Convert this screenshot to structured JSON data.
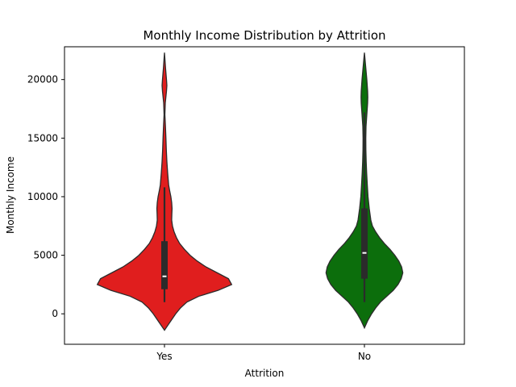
{
  "chart_data": {
    "type": "violin",
    "title": "Monthly Income Distribution by Attrition",
    "xlabel": "Attrition",
    "ylabel": "Monthly Income",
    "categories": [
      "Yes",
      "No"
    ],
    "ylim": [
      -2600,
      22800
    ],
    "yticks": [
      0,
      5000,
      10000,
      15000,
      20000
    ],
    "grid": false,
    "legend": "none",
    "violins": [
      {
        "category": "Yes",
        "color": "#e01e1e",
        "quartiles": {
          "q1": 2100,
          "median": 3200,
          "q3": 6200
        },
        "whiskers": {
          "low": 1000,
          "high": 10800
        },
        "profile": [
          [
            -1400,
            0.0
          ],
          [
            -1000,
            0.04
          ],
          [
            -500,
            0.09
          ],
          [
            0,
            0.14
          ],
          [
            500,
            0.2
          ],
          [
            1000,
            0.28
          ],
          [
            1500,
            0.43
          ],
          [
            2000,
            0.67
          ],
          [
            2500,
            0.84
          ],
          [
            3000,
            0.8
          ],
          [
            3500,
            0.66
          ],
          [
            4000,
            0.52
          ],
          [
            4500,
            0.41
          ],
          [
            5000,
            0.32
          ],
          [
            5500,
            0.25
          ],
          [
            6000,
            0.19
          ],
          [
            6500,
            0.15
          ],
          [
            7000,
            0.12
          ],
          [
            7500,
            0.1
          ],
          [
            8000,
            0.09
          ],
          [
            8500,
            0.092
          ],
          [
            9000,
            0.095
          ],
          [
            9500,
            0.09
          ],
          [
            10000,
            0.08
          ],
          [
            10500,
            0.065
          ],
          [
            11000,
            0.052
          ],
          [
            12000,
            0.04
          ],
          [
            13000,
            0.03
          ],
          [
            14000,
            0.023
          ],
          [
            15000,
            0.018
          ],
          [
            16000,
            0.012
          ],
          [
            17000,
            0.005
          ],
          [
            18000,
            0.01
          ],
          [
            19000,
            0.025
          ],
          [
            19500,
            0.03
          ],
          [
            20000,
            0.025
          ],
          [
            21000,
            0.013
          ],
          [
            22300,
            0.0
          ]
        ]
      },
      {
        "category": "No",
        "color": "#0c6e0c",
        "quartiles": {
          "q1": 3000,
          "median": 5200,
          "q3": 9000
        },
        "whiskers": {
          "low": 1000,
          "high": 17200
        },
        "profile": [
          [
            -1200,
            0.0
          ],
          [
            -600,
            0.04
          ],
          [
            0,
            0.09
          ],
          [
            500,
            0.14
          ],
          [
            1000,
            0.2
          ],
          [
            1500,
            0.28
          ],
          [
            2000,
            0.36
          ],
          [
            2500,
            0.42
          ],
          [
            3000,
            0.46
          ],
          [
            3500,
            0.48
          ],
          [
            4000,
            0.465
          ],
          [
            4500,
            0.43
          ],
          [
            5000,
            0.38
          ],
          [
            5500,
            0.32
          ],
          [
            6000,
            0.25
          ],
          [
            6500,
            0.19
          ],
          [
            7000,
            0.14
          ],
          [
            7500,
            0.1
          ],
          [
            8000,
            0.08
          ],
          [
            9000,
            0.06
          ],
          [
            10000,
            0.045
          ],
          [
            11000,
            0.036
          ],
          [
            12000,
            0.028
          ],
          [
            13000,
            0.022
          ],
          [
            14000,
            0.018
          ],
          [
            15000,
            0.017
          ],
          [
            16000,
            0.02
          ],
          [
            17000,
            0.03
          ],
          [
            18000,
            0.04
          ],
          [
            18500,
            0.042
          ],
          [
            19000,
            0.04
          ],
          [
            20000,
            0.03
          ],
          [
            21000,
            0.017
          ],
          [
            22300,
            0.0
          ]
        ]
      }
    ]
  }
}
